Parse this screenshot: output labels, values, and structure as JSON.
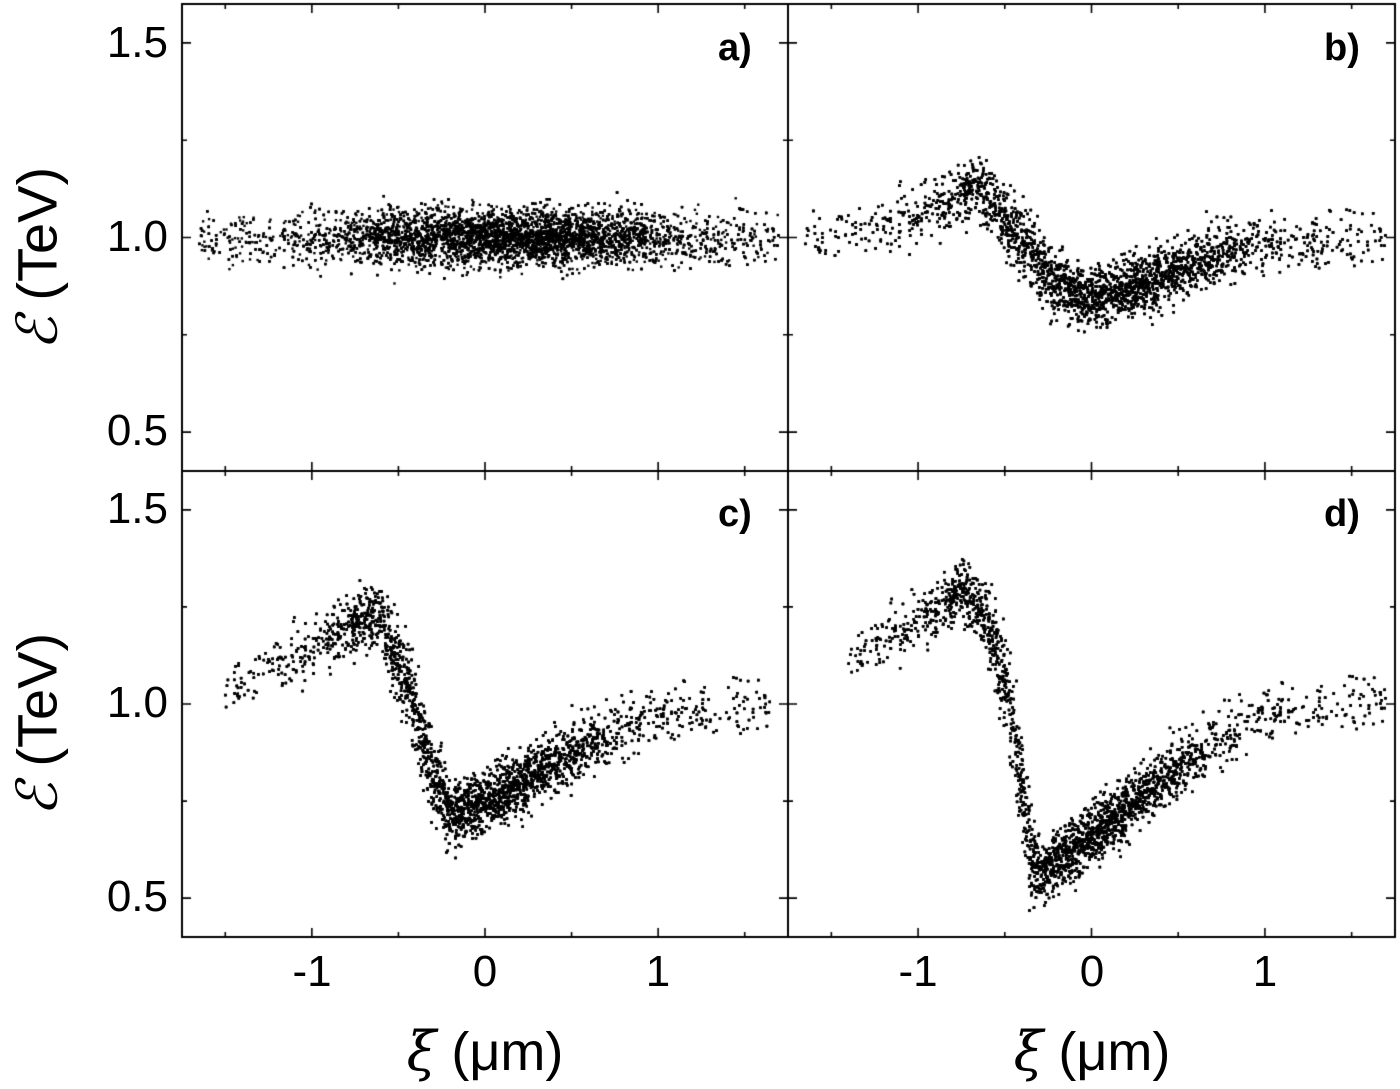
{
  "figure": {
    "background": "#ffffff",
    "ink": "#000000"
  },
  "axes": {
    "xlabel_symbol": "ξ",
    "xlabel_unit": " (μm)",
    "ylabel_symbol": "ℰ",
    "ylabel_unit": " (TeV)",
    "xlim": [
      -1.75,
      1.75
    ],
    "ylim": [
      0.4,
      1.6
    ],
    "x_major_ticks": [
      -1,
      0,
      1
    ],
    "x_minor_ticks": [
      -1.5,
      -0.5,
      0.5,
      1.5
    ],
    "x_tick_labels": [
      "-1",
      "0",
      "1"
    ],
    "y_major_ticks": [
      0.5,
      1.0,
      1.5
    ],
    "y_minor_ticks": [
      0.75,
      1.25
    ],
    "y_tick_labels": [
      "0.5",
      "1.0",
      "1.5"
    ]
  },
  "panels": [
    {
      "id": "a",
      "label": "a)",
      "row": 0,
      "col": 0
    },
    {
      "id": "b",
      "label": "b)",
      "row": 0,
      "col": 1
    },
    {
      "id": "c",
      "label": "c)",
      "row": 1,
      "col": 0
    },
    {
      "id": "d",
      "label": "d)",
      "row": 1,
      "col": 1
    }
  ],
  "chart_data": [
    {
      "type": "scatter",
      "panel": "a)",
      "title": "",
      "xlabel": "ξ (μm)",
      "ylabel": "ℰ (TeV)",
      "xlim": [
        -1.75,
        1.75
      ],
      "ylim": [
        0.4,
        1.6
      ],
      "grid": false,
      "description": "Flat horizontal band of particles around ℰ = 1.0 TeV",
      "x_range": [
        -1.65,
        1.7
      ],
      "n_points": 9000,
      "ridge": [
        [
          -1.6,
          1.0
        ],
        [
          -0.5,
          1.0
        ],
        [
          0.0,
          1.0
        ],
        [
          0.5,
          1.0
        ],
        [
          1.0,
          1.0
        ],
        [
          1.7,
          1.0
        ]
      ],
      "spread": 0.035,
      "x_center": 0.1,
      "x_sigma": 0.55,
      "y_extent": [
        0.88,
        1.12
      ]
    },
    {
      "type": "scatter",
      "panel": "b)",
      "title": "",
      "xlabel": "ξ (μm)",
      "ylabel": "ℰ (TeV)",
      "xlim": [
        -1.75,
        1.75
      ],
      "ylim": [
        0.4,
        1.6
      ],
      "grid": false,
      "description": "Mild chirp: peak near ξ=-0.65 (ℰ≈1.13), minimum near ξ=-0.05 (ℰ≈0.84), back to 1.0 at ξ≈1",
      "x_range": [
        -1.65,
        1.7
      ],
      "n_points": 9000,
      "ridge": [
        [
          -1.6,
          1.0
        ],
        [
          -1.2,
          1.04
        ],
        [
          -0.9,
          1.08
        ],
        [
          -0.65,
          1.13
        ],
        [
          -0.45,
          1.02
        ],
        [
          -0.25,
          0.9
        ],
        [
          -0.05,
          0.84
        ],
        [
          0.3,
          0.88
        ],
        [
          0.7,
          0.95
        ],
        [
          1.0,
          0.99
        ],
        [
          1.7,
          1.0
        ]
      ],
      "spread": 0.035,
      "x_center": 0.0,
      "x_sigma": 0.55,
      "y_extent": [
        0.73,
        1.21
      ]
    },
    {
      "type": "scatter",
      "panel": "c)",
      "title": "",
      "xlabel": "ξ (μm)",
      "ylabel": "ℰ (TeV)",
      "xlim": [
        -1.75,
        1.75
      ],
      "ylim": [
        0.4,
        1.6
      ],
      "grid": false,
      "description": "Stronger chirp: peak near ξ=-0.65 (ℰ≈1.24), minimum near ξ=-0.2 (ℰ≈0.70), rising to ≈1.0 at ξ≈1",
      "x_range": [
        -1.5,
        1.65
      ],
      "n_points": 9000,
      "ridge": [
        [
          -1.5,
          1.04
        ],
        [
          -1.1,
          1.13
        ],
        [
          -0.8,
          1.2
        ],
        [
          -0.6,
          1.22
        ],
        [
          -0.45,
          1.05
        ],
        [
          -0.32,
          0.85
        ],
        [
          -0.2,
          0.71
        ],
        [
          0.1,
          0.77
        ],
        [
          0.5,
          0.87
        ],
        [
          0.8,
          0.94
        ],
        [
          1.0,
          0.98
        ],
        [
          1.65,
          1.0
        ]
      ],
      "spread": 0.035,
      "x_center": -0.1,
      "x_sigma": 0.5,
      "y_extent": [
        0.59,
        1.33
      ]
    },
    {
      "type": "scatter",
      "panel": "d)",
      "title": "",
      "xlabel": "ξ (μm)",
      "ylabel": "ℰ (TeV)",
      "xlim": [
        -1.75,
        1.75
      ],
      "ylim": [
        0.4,
        1.6
      ],
      "grid": false,
      "description": "Strongest chirp (V shape): peak near ξ=-0.75 (ℰ≈1.3), minimum near ξ=-0.35 (ℰ≈0.55), rising linearly to ≈0.98 at ξ≈1",
      "x_range": [
        -1.4,
        1.7
      ],
      "n_points": 9000,
      "ridge": [
        [
          -1.4,
          1.12
        ],
        [
          -1.0,
          1.22
        ],
        [
          -0.75,
          1.29
        ],
        [
          -0.6,
          1.22
        ],
        [
          -0.5,
          1.05
        ],
        [
          -0.42,
          0.85
        ],
        [
          -0.35,
          0.62
        ],
        [
          -0.3,
          0.56
        ],
        [
          0.0,
          0.66
        ],
        [
          0.4,
          0.8
        ],
        [
          0.8,
          0.93
        ],
        [
          1.0,
          0.98
        ],
        [
          1.7,
          1.01
        ]
      ],
      "spread": 0.033,
      "x_center": -0.15,
      "x_sigma": 0.5,
      "y_extent": [
        0.46,
        1.38
      ]
    }
  ]
}
